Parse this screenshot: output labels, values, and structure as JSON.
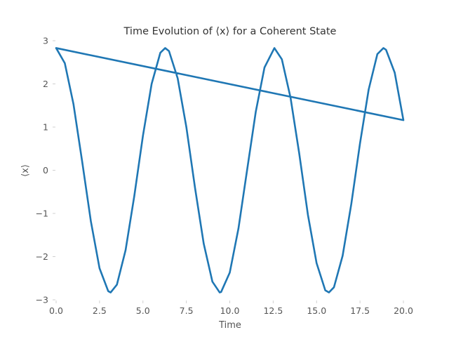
{
  "chart_data": {
    "type": "line",
    "title": "Time Evolution of ⟨x⟩ for a Coherent State",
    "xlabel": "Time",
    "ylabel": "⟨x⟩",
    "xlim": [
      0,
      20
    ],
    "ylim": [
      -3,
      3
    ],
    "xticks": [
      0,
      2.5,
      5,
      7.5,
      10,
      12.5,
      15,
      17.5,
      20
    ],
    "xtick_labels": [
      "0.0",
      "2.5",
      "5.0",
      "7.5",
      "10.0",
      "12.5",
      "15.0",
      "17.5",
      "20.0"
    ],
    "yticks": [
      -3,
      -2,
      -1,
      0,
      1,
      2,
      3
    ],
    "ytick_labels": [
      "−3",
      "−2",
      "−1",
      "0",
      "1",
      "2",
      "3"
    ],
    "grid": false,
    "colors": {
      "series": "#1f77b4"
    },
    "series": [
      {
        "x": [
          0.0,
          0.5,
          1.0,
          1.5,
          2.0,
          2.5,
          3.0,
          3.14,
          3.5,
          4.0,
          4.5,
          5.0,
          5.5,
          6.0,
          6.28,
          6.5,
          7.0,
          7.5,
          8.0,
          8.5,
          9.0,
          9.42,
          9.5,
          10.0,
          10.5,
          11.0,
          11.5,
          12.0,
          12.57,
          13.0,
          13.5,
          14.0,
          14.5,
          15.0,
          15.5,
          15.71,
          16.0,
          16.5,
          17.0,
          17.5,
          18.0,
          18.5,
          18.85,
          19.0,
          19.5,
          20.0,
          0.0
        ],
        "y": [
          2.83,
          2.48,
          1.53,
          0.2,
          -1.18,
          -2.27,
          -2.8,
          -2.83,
          -2.65,
          -1.85,
          -0.6,
          0.8,
          2.0,
          2.72,
          2.83,
          2.76,
          2.13,
          1.0,
          -0.41,
          -1.7,
          -2.58,
          -2.83,
          -2.82,
          -2.37,
          -1.35,
          0.01,
          1.36,
          2.38,
          2.83,
          2.57,
          1.68,
          0.39,
          -1.03,
          -2.15,
          -2.78,
          -2.83,
          -2.71,
          -1.98,
          -0.78,
          0.62,
          1.87,
          2.69,
          2.83,
          2.79,
          2.26,
          1.16,
          2.83
        ]
      }
    ]
  }
}
